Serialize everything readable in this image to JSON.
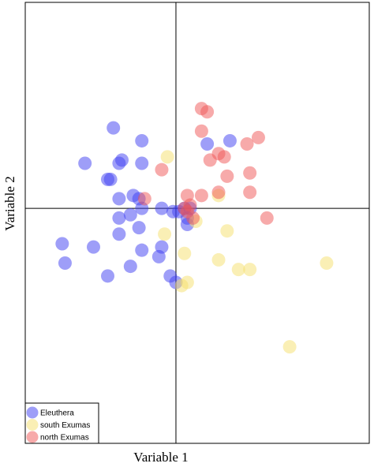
{
  "chart_data": {
    "type": "scatter",
    "xlabel": "Variable 1",
    "ylabel": "Variable 2",
    "xlim": [
      -5.3,
      6.8
    ],
    "ylim": [
      -7.3,
      6.4
    ],
    "grid": false,
    "reference_lines": {
      "x": 0,
      "y": 0
    },
    "legend_position": "bottom-left",
    "point_opacity": 0.5,
    "series": [
      {
        "name": "Eleuthera",
        "color": "#3d3df2",
        "points": [
          [
            -2.2,
            2.5
          ],
          [
            -1.2,
            2.1
          ],
          [
            -3.2,
            1.4
          ],
          [
            -1.9,
            1.5
          ],
          [
            -2.0,
            1.4
          ],
          [
            -1.2,
            1.4
          ],
          [
            -2.3,
            0.9
          ],
          [
            -2.4,
            0.9
          ],
          [
            1.9,
            2.1
          ],
          [
            1.1,
            2.0
          ],
          [
            -2.0,
            0.3
          ],
          [
            -1.5,
            0.4
          ],
          [
            -1.3,
            0.3
          ],
          [
            -0.5,
            0.0
          ],
          [
            -0.1,
            -0.1
          ],
          [
            0.1,
            -0.1
          ],
          [
            0.5,
            0.0
          ],
          [
            -1.2,
            0.0
          ],
          [
            -2.0,
            -0.3
          ],
          [
            -1.6,
            -0.2
          ],
          [
            -1.3,
            -0.6
          ],
          [
            0.4,
            -0.5
          ],
          [
            -2.0,
            -0.8
          ],
          [
            -4.0,
            -1.1
          ],
          [
            -2.9,
            -1.2
          ],
          [
            -1.2,
            -1.3
          ],
          [
            -0.5,
            -1.2
          ],
          [
            -0.6,
            -1.5
          ],
          [
            -3.9,
            -1.7
          ],
          [
            -1.6,
            -1.8
          ],
          [
            -2.4,
            -2.1
          ],
          [
            -0.2,
            -2.1
          ],
          [
            0.0,
            -2.3
          ],
          [
            0.4,
            -0.3
          ],
          [
            0.3,
            0.0
          ]
        ]
      },
      {
        "name": "south Exumas",
        "color": "#f6e06c",
        "points": [
          [
            -0.3,
            1.6
          ],
          [
            1.5,
            0.4
          ],
          [
            1.8,
            -0.7
          ],
          [
            0.3,
            -1.4
          ],
          [
            1.5,
            -1.6
          ],
          [
            2.2,
            -1.9
          ],
          [
            2.6,
            -1.9
          ],
          [
            5.3,
            -1.7
          ],
          [
            0.2,
            -2.4
          ],
          [
            0.4,
            -2.3
          ],
          [
            4.0,
            -4.3
          ],
          [
            -0.4,
            -0.8
          ],
          [
            0.7,
            -0.4
          ]
        ]
      },
      {
        "name": "north Exumas",
        "color": "#f05656",
        "points": [
          [
            0.9,
            3.1
          ],
          [
            1.1,
            3.0
          ],
          [
            0.9,
            2.4
          ],
          [
            1.5,
            1.7
          ],
          [
            1.7,
            1.6
          ],
          [
            2.5,
            2.0
          ],
          [
            2.9,
            2.2
          ],
          [
            1.2,
            1.5
          ],
          [
            2.6,
            1.1
          ],
          [
            1.8,
            1.0
          ],
          [
            -0.5,
            1.2
          ],
          [
            2.6,
            0.5
          ],
          [
            1.5,
            0.5
          ],
          [
            0.9,
            0.4
          ],
          [
            0.4,
            0.4
          ],
          [
            0.5,
            0.1
          ],
          [
            0.3,
            0.0
          ],
          [
            0.4,
            -0.1
          ],
          [
            0.6,
            -0.3
          ],
          [
            3.2,
            -0.3
          ],
          [
            -1.1,
            0.3
          ]
        ]
      }
    ]
  }
}
